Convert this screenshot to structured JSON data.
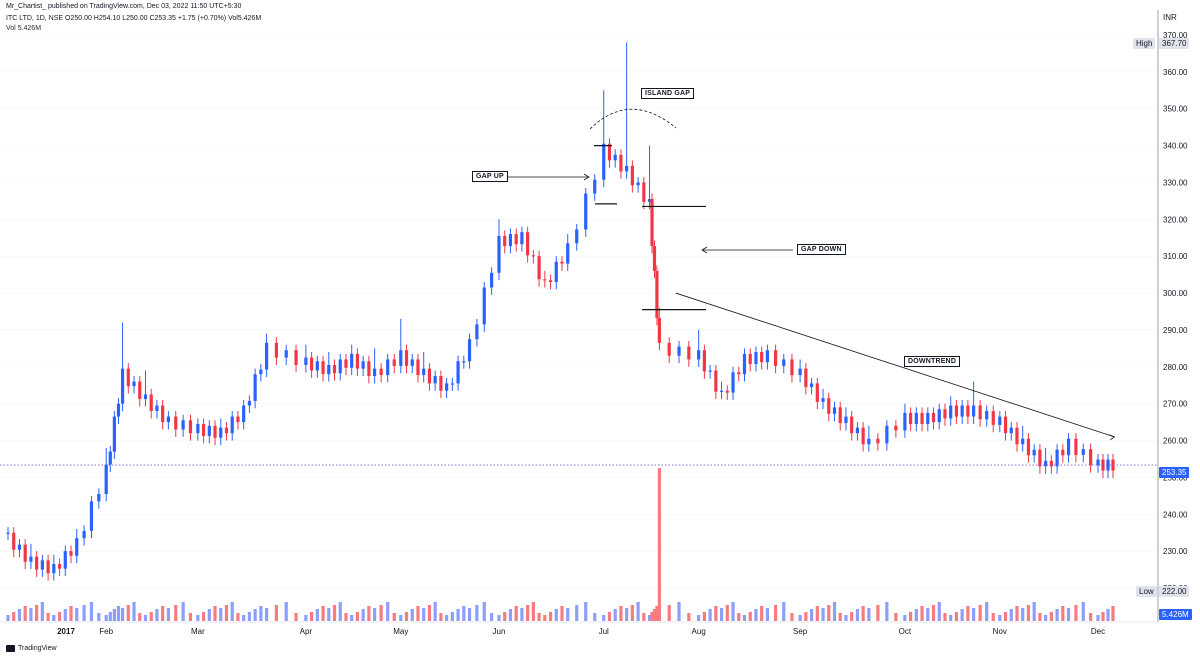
{
  "header": {
    "publisher": "Mr_Chartist_ published on TradingView.com, Dec 03, 2022 11:50 UTC+5:30",
    "symbol": "ITC LTD, 1D, NSE",
    "ohlc": "O250.00 H254.10 L250.00 C253.35 +1.75 (+0.70%) Vol5.426M",
    "vol_label": "Vol",
    "vol_value": "5.426M"
  },
  "footer": {
    "brand": "TradingView"
  },
  "price_axis": {
    "currency": "INR",
    "ticks": [
      "370.00",
      "360.00",
      "350.00",
      "340.00",
      "330.00",
      "320.00",
      "310.00",
      "300.00",
      "290.00",
      "280.00",
      "270.00",
      "260.00",
      "250.00",
      "240.00",
      "230.00",
      "220.00"
    ],
    "high_label": "High",
    "high_value": "367.70",
    "low_label": "Low",
    "low_value": "222.00",
    "last_value": "253.35",
    "vol_badge": "5.426M"
  },
  "time_axis": {
    "labels": [
      "2017",
      "Feb",
      "Mar",
      "Apr",
      "May",
      "Jun",
      "Jul",
      "Aug",
      "Sep",
      "Oct",
      "Nov",
      "Dec"
    ]
  },
  "annotations": {
    "island_gap": "ISLAND GAP",
    "gap_up": "GAP UP",
    "gap_down": "GAP DOWN",
    "downtrend": "DOWNTREND"
  },
  "colors": {
    "up": "#2962ff",
    "down": "#f23645",
    "vol_up": "#8c9ffb",
    "vol_down": "#f77c80",
    "last_line": "#7e57c2"
  },
  "chart_data": {
    "type": "candlestick",
    "ylim": [
      217,
      375
    ],
    "series": [
      {
        "t": "2017-01-02",
        "c": 233.5,
        "h": 236
      },
      {
        "t": "2017-01-09",
        "c": 227,
        "h": 232
      },
      {
        "t": "2017-01-16",
        "c": 225,
        "h": 229
      },
      {
        "t": "2017-01-23",
        "c": 232,
        "h": 236
      },
      {
        "t": "2017-02-01",
        "c": 252,
        "h": 258
      },
      {
        "t": "2017-02-06",
        "c": 278,
        "h": 292
      },
      {
        "t": "2017-02-13",
        "c": 271,
        "h": 279
      },
      {
        "t": "2017-02-20",
        "c": 265,
        "h": 268
      },
      {
        "t": "2017-03-01",
        "c": 263,
        "h": 265
      },
      {
        "t": "2017-03-08",
        "c": 262,
        "h": 266
      },
      {
        "t": "2017-03-15",
        "c": 268,
        "h": 270
      },
      {
        "t": "2017-03-22",
        "c": 285,
        "h": 289
      },
      {
        "t": "2017-04-03",
        "c": 281,
        "h": 286
      },
      {
        "t": "2017-04-10",
        "c": 279,
        "h": 284
      },
      {
        "t": "2017-04-17",
        "c": 282,
        "h": 286
      },
      {
        "t": "2017-04-24",
        "c": 278,
        "h": 285
      },
      {
        "t": "2017-05-02",
        "c": 283,
        "h": 293
      },
      {
        "t": "2017-05-09",
        "c": 278,
        "h": 284
      },
      {
        "t": "2017-05-16",
        "c": 274,
        "h": 277
      },
      {
        "t": "2017-05-23",
        "c": 286,
        "h": 288
      },
      {
        "t": "2017-06-01",
        "c": 314,
        "h": 320
      },
      {
        "t": "2017-06-08",
        "c": 315,
        "h": 318
      },
      {
        "t": "2017-06-15",
        "c": 302,
        "h": 306
      },
      {
        "t": "2017-06-22",
        "c": 312,
        "h": 316
      },
      {
        "t": "2017-07-03",
        "c": 339,
        "h": 355
      },
      {
        "t": "2017-07-10",
        "c": 333,
        "h": 368
      },
      {
        "t": "2017-07-17",
        "c": 324,
        "h": 340
      },
      {
        "t": "2017-07-20",
        "c": 285,
        "h": 296
      },
      {
        "t": "2017-08-01",
        "c": 283,
        "h": 290
      },
      {
        "t": "2017-08-08",
        "c": 272,
        "h": 276
      },
      {
        "t": "2017-08-15",
        "c": 282,
        "h": 285
      },
      {
        "t": "2017-08-22",
        "c": 283,
        "h": 285
      },
      {
        "t": "2017-09-01",
        "c": 278,
        "h": 282
      },
      {
        "t": "2017-09-08",
        "c": 270,
        "h": 274
      },
      {
        "t": "2017-09-15",
        "c": 265,
        "h": 269
      },
      {
        "t": "2017-09-22",
        "c": 259,
        "h": 264
      },
      {
        "t": "2017-10-03",
        "c": 266,
        "h": 270
      },
      {
        "t": "2017-10-10",
        "c": 266,
        "h": 269
      },
      {
        "t": "2017-10-17",
        "c": 268,
        "h": 272
      },
      {
        "t": "2017-10-24",
        "c": 268,
        "h": 276
      },
      {
        "t": "2017-11-01",
        "c": 265,
        "h": 268
      },
      {
        "t": "2017-11-08",
        "c": 259,
        "h": 264
      },
      {
        "t": "2017-11-15",
        "c": 253,
        "h": 258
      },
      {
        "t": "2017-11-22",
        "c": 259,
        "h": 262
      },
      {
        "t": "2017-12-01",
        "c": 253.35,
        "h": 254.1
      }
    ],
    "trendline": {
      "from": {
        "t": "2017-07-25",
        "y": 300
      },
      "to": {
        "t": "2017-12-06",
        "y": 261
      }
    }
  }
}
